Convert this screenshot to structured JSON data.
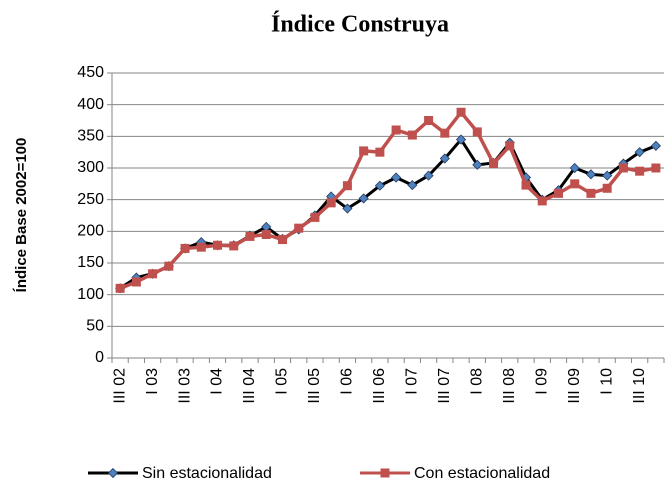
{
  "chart_data": {
    "type": "line",
    "title": "Índice Construya",
    "y_label": "Índice Base 2002=100",
    "categories": [
      "III 02",
      null,
      "I 03",
      null,
      "III 03",
      null,
      "I 04",
      null,
      "III 04",
      null,
      "I 05",
      null,
      "III 05",
      null,
      "I 06",
      null,
      "III 06",
      null,
      "I 07",
      null,
      "III 07",
      null,
      "I 08",
      null,
      "III 08",
      null,
      "I 09",
      null,
      "III 09",
      null,
      "I 10",
      null,
      "III 10",
      null
    ],
    "series": [
      {
        "name": "Sin estacionalidad",
        "color": "#000000",
        "marker_color": "#4f81bd",
        "marker": "diamond",
        "values": [
          110,
          127,
          133,
          145,
          173,
          183,
          178,
          178,
          193,
          207,
          188,
          203,
          225,
          255,
          236,
          252,
          272,
          285,
          273,
          288,
          315,
          345,
          305,
          308,
          340,
          285,
          250,
          265,
          300,
          290,
          288,
          307,
          325,
          335
        ]
      },
      {
        "name": "Con estacionalidad",
        "color": "#c0504d",
        "marker_color": "#c0504d",
        "marker": "square",
        "values": [
          110,
          120,
          133,
          145,
          173,
          175,
          178,
          177,
          192,
          195,
          187,
          205,
          222,
          245,
          272,
          327,
          325,
          360,
          352,
          375,
          355,
          388,
          357,
          307,
          335,
          273,
          248,
          260,
          275,
          260,
          268,
          300,
          295,
          300
        ]
      }
    ],
    "ylim": [
      0,
      450
    ],
    "yticks": [
      0,
      50,
      100,
      150,
      200,
      250,
      300,
      350,
      400,
      450
    ],
    "grid": true,
    "legend": "bottom"
  }
}
